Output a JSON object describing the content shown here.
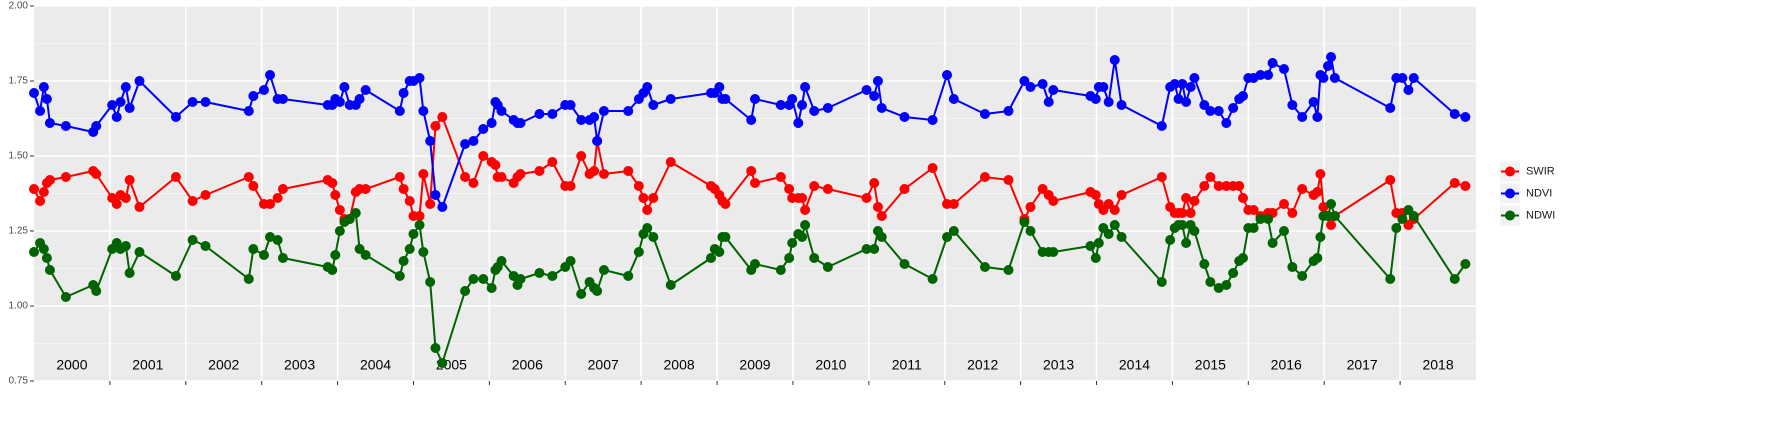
{
  "chart_data": {
    "type": "line",
    "x": [
      2000.0,
      2000.08,
      2000.13,
      2000.17,
      2000.21,
      2000.42,
      2000.78,
      2000.82,
      2001.03,
      2001.09,
      2001.14,
      2001.21,
      2001.26,
      2001.39,
      2001.87,
      2002.09,
      2002.26,
      2002.83,
      2002.89,
      2003.03,
      2003.11,
      2003.21,
      2003.28,
      2003.87,
      2003.93,
      2003.97,
      2004.03,
      2004.09,
      2004.16,
      2004.24,
      2004.29,
      2004.37,
      2004.82,
      2004.87,
      2004.95,
      2005.0,
      2005.08,
      2005.13,
      2005.22,
      2005.29,
      2005.38,
      2005.68,
      2005.79,
      2005.92,
      2006.03,
      2006.08,
      2006.11,
      2006.16,
      2006.32,
      2006.37,
      2006.41,
      2006.66,
      2006.83,
      2007.0,
      2007.07,
      2007.21,
      2007.32,
      2007.38,
      2007.42,
      2007.51,
      2007.83,
      2007.97,
      2008.03,
      2008.08,
      2008.16,
      2008.39,
      2008.92,
      2008.97,
      2009.03,
      2009.07,
      2009.11,
      2009.45,
      2009.5,
      2009.84,
      2009.95,
      2009.99,
      2010.07,
      2010.12,
      2010.16,
      2010.28,
      2010.46,
      2010.97,
      2011.07,
      2011.12,
      2011.17,
      2011.47,
      2011.84,
      2012.03,
      2012.12,
      2012.53,
      2012.84,
      2013.05,
      2013.13,
      2013.29,
      2013.37,
      2013.43,
      2013.92,
      2013.99,
      2014.03,
      2014.09,
      2014.16,
      2014.24,
      2014.33,
      2014.86,
      2014.97,
      2015.03,
      2015.08,
      2015.13,
      2015.18,
      2015.24,
      2015.29,
      2015.42,
      2015.5,
      2015.61,
      2015.71,
      2015.8,
      2015.88,
      2015.93,
      2016.0,
      2016.07,
      2016.16,
      2016.26,
      2016.32,
      2016.47,
      2016.58,
      2016.71,
      2016.86,
      2016.91,
      2016.95,
      2016.99,
      2017.05,
      2017.09,
      2017.14,
      2017.87,
      2017.95,
      2018.03,
      2018.11,
      2018.18,
      2018.72,
      2018.86
    ],
    "series": [
      {
        "name": "SWIR",
        "color": "#ff0000",
        "values": [
          1.39,
          1.35,
          1.38,
          1.41,
          1.42,
          1.43,
          1.45,
          1.44,
          1.36,
          1.34,
          1.37,
          1.36,
          1.42,
          1.33,
          1.43,
          1.35,
          1.37,
          1.43,
          1.4,
          1.34,
          1.34,
          1.36,
          1.39,
          1.42,
          1.41,
          1.37,
          1.32,
          1.29,
          1.29,
          1.38,
          1.39,
          1.39,
          1.43,
          1.39,
          1.35,
          1.3,
          1.3,
          1.44,
          1.34,
          1.6,
          1.63,
          1.43,
          1.41,
          1.5,
          1.48,
          1.47,
          1.43,
          1.43,
          1.41,
          1.43,
          1.44,
          1.45,
          1.48,
          1.4,
          1.4,
          1.5,
          1.44,
          1.45,
          1.55,
          1.44,
          1.45,
          1.4,
          1.36,
          1.32,
          1.36,
          1.48,
          1.4,
          1.39,
          1.37,
          1.35,
          1.34,
          1.45,
          1.41,
          1.43,
          1.39,
          1.36,
          1.36,
          1.36,
          1.32,
          1.4,
          1.39,
          1.36,
          1.41,
          1.33,
          1.3,
          1.39,
          1.46,
          1.34,
          1.34,
          1.43,
          1.42,
          1.29,
          1.33,
          1.39,
          1.37,
          1.35,
          1.38,
          1.37,
          1.34,
          1.32,
          1.34,
          1.32,
          1.37,
          1.43,
          1.33,
          1.31,
          1.31,
          1.31,
          1.36,
          1.31,
          1.35,
          1.4,
          1.43,
          1.4,
          1.4,
          1.4,
          1.4,
          1.36,
          1.32,
          1.32,
          1.3,
          1.31,
          1.31,
          1.34,
          1.31,
          1.39,
          1.37,
          1.38,
          1.44,
          1.33,
          1.3,
          1.27,
          1.3,
          1.42,
          1.31,
          1.31,
          1.27,
          1.29,
          1.41,
          1.4
        ]
      },
      {
        "name": "NDVI",
        "color": "#0000ff",
        "values": [
          1.71,
          1.65,
          1.73,
          1.69,
          1.61,
          1.6,
          1.58,
          1.6,
          1.67,
          1.63,
          1.68,
          1.73,
          1.66,
          1.75,
          1.63,
          1.68,
          1.68,
          1.65,
          1.7,
          1.72,
          1.77,
          1.69,
          1.69,
          1.67,
          1.67,
          1.69,
          1.68,
          1.73,
          1.67,
          1.67,
          1.69,
          1.72,
          1.65,
          1.71,
          1.75,
          1.75,
          1.76,
          1.65,
          1.55,
          1.37,
          1.33,
          1.54,
          1.55,
          1.59,
          1.61,
          1.68,
          1.67,
          1.65,
          1.62,
          1.61,
          1.61,
          1.64,
          1.64,
          1.67,
          1.67,
          1.62,
          1.62,
          1.63,
          1.55,
          1.65,
          1.65,
          1.69,
          1.71,
          1.73,
          1.67,
          1.69,
          1.71,
          1.71,
          1.73,
          1.69,
          1.69,
          1.62,
          1.69,
          1.67,
          1.67,
          1.69,
          1.61,
          1.67,
          1.73,
          1.65,
          1.66,
          1.72,
          1.7,
          1.75,
          1.66,
          1.63,
          1.62,
          1.77,
          1.69,
          1.64,
          1.65,
          1.75,
          1.73,
          1.74,
          1.68,
          1.72,
          1.7,
          1.69,
          1.73,
          1.73,
          1.68,
          1.82,
          1.67,
          1.6,
          1.73,
          1.74,
          1.69,
          1.74,
          1.68,
          1.73,
          1.76,
          1.67,
          1.65,
          1.65,
          1.61,
          1.66,
          1.69,
          1.7,
          1.76,
          1.76,
          1.77,
          1.77,
          1.81,
          1.79,
          1.67,
          1.63,
          1.68,
          1.63,
          1.77,
          1.76,
          1.8,
          1.83,
          1.76,
          1.66,
          1.76,
          1.76,
          1.72,
          1.76,
          1.64,
          1.63
        ]
      },
      {
        "name": "NDWI",
        "color": "#006400",
        "values": [
          1.18,
          1.21,
          1.19,
          1.16,
          1.12,
          1.03,
          1.07,
          1.05,
          1.19,
          1.21,
          1.19,
          1.2,
          1.11,
          1.18,
          1.1,
          1.22,
          1.2,
          1.09,
          1.19,
          1.17,
          1.23,
          1.22,
          1.16,
          1.13,
          1.12,
          1.17,
          1.25,
          1.28,
          1.29,
          1.31,
          1.19,
          1.17,
          1.1,
          1.15,
          1.19,
          1.24,
          1.27,
          1.18,
          1.08,
          0.86,
          0.81,
          1.05,
          1.09,
          1.09,
          1.06,
          1.12,
          1.13,
          1.15,
          1.1,
          1.07,
          1.09,
          1.11,
          1.1,
          1.13,
          1.15,
          1.04,
          1.08,
          1.06,
          1.05,
          1.12,
          1.1,
          1.18,
          1.24,
          1.26,
          1.23,
          1.07,
          1.16,
          1.19,
          1.18,
          1.23,
          1.23,
          1.12,
          1.14,
          1.12,
          1.16,
          1.21,
          1.24,
          1.23,
          1.27,
          1.16,
          1.13,
          1.19,
          1.19,
          1.25,
          1.23,
          1.14,
          1.09,
          1.23,
          1.25,
          1.13,
          1.12,
          1.28,
          1.25,
          1.18,
          1.18,
          1.18,
          1.2,
          1.16,
          1.21,
          1.26,
          1.24,
          1.27,
          1.23,
          1.08,
          1.22,
          1.26,
          1.27,
          1.27,
          1.21,
          1.27,
          1.25,
          1.14,
          1.08,
          1.06,
          1.07,
          1.11,
          1.15,
          1.16,
          1.26,
          1.26,
          1.29,
          1.29,
          1.21,
          1.25,
          1.13,
          1.1,
          1.15,
          1.16,
          1.23,
          1.3,
          1.3,
          1.34,
          1.3,
          1.09,
          1.26,
          1.29,
          1.32,
          1.3,
          1.09,
          1.14
        ]
      }
    ],
    "xlim": [
      2000,
      2019
    ],
    "xgrid": [
      2001,
      2002,
      2003,
      2004,
      2005,
      2006,
      2007,
      2008,
      2009,
      2010,
      2011,
      2012,
      2013,
      2014,
      2015,
      2016,
      2017,
      2018
    ],
    "year_labels": [
      {
        "value": 2000.5,
        "label": "2000"
      },
      {
        "value": 2001.5,
        "label": "2001"
      },
      {
        "value": 2002.5,
        "label": "2002"
      },
      {
        "value": 2003.5,
        "label": "2003"
      },
      {
        "value": 2004.5,
        "label": "2004"
      },
      {
        "value": 2005.5,
        "label": "2005"
      },
      {
        "value": 2006.5,
        "label": "2006"
      },
      {
        "value": 2007.5,
        "label": "2007"
      },
      {
        "value": 2008.5,
        "label": "2008"
      },
      {
        "value": 2009.5,
        "label": "2009"
      },
      {
        "value": 2010.5,
        "label": "2010"
      },
      {
        "value": 2011.5,
        "label": "2011"
      },
      {
        "value": 2012.5,
        "label": "2012"
      },
      {
        "value": 2013.5,
        "label": "2013"
      },
      {
        "value": 2014.5,
        "label": "2014"
      },
      {
        "value": 2015.5,
        "label": "2015"
      },
      {
        "value": 2016.5,
        "label": "2016"
      },
      {
        "value": 2017.5,
        "label": "2017"
      },
      {
        "value": 2018.5,
        "label": "2018"
      }
    ],
    "ylim": [
      0.75,
      2.0
    ],
    "yticks": [
      0.75,
      {
        "value": 1.0,
        "label": "1.00"
      },
      1.25,
      {
        "value": 1.5,
        "label": "1.50"
      },
      1.75,
      {
        "value": 2.0,
        "label": "2.00"
      }
    ],
    "y_minor_grid": [
      0.875,
      1.125,
      1.375,
      1.625,
      1.875
    ],
    "grid": true,
    "legend": "right"
  }
}
